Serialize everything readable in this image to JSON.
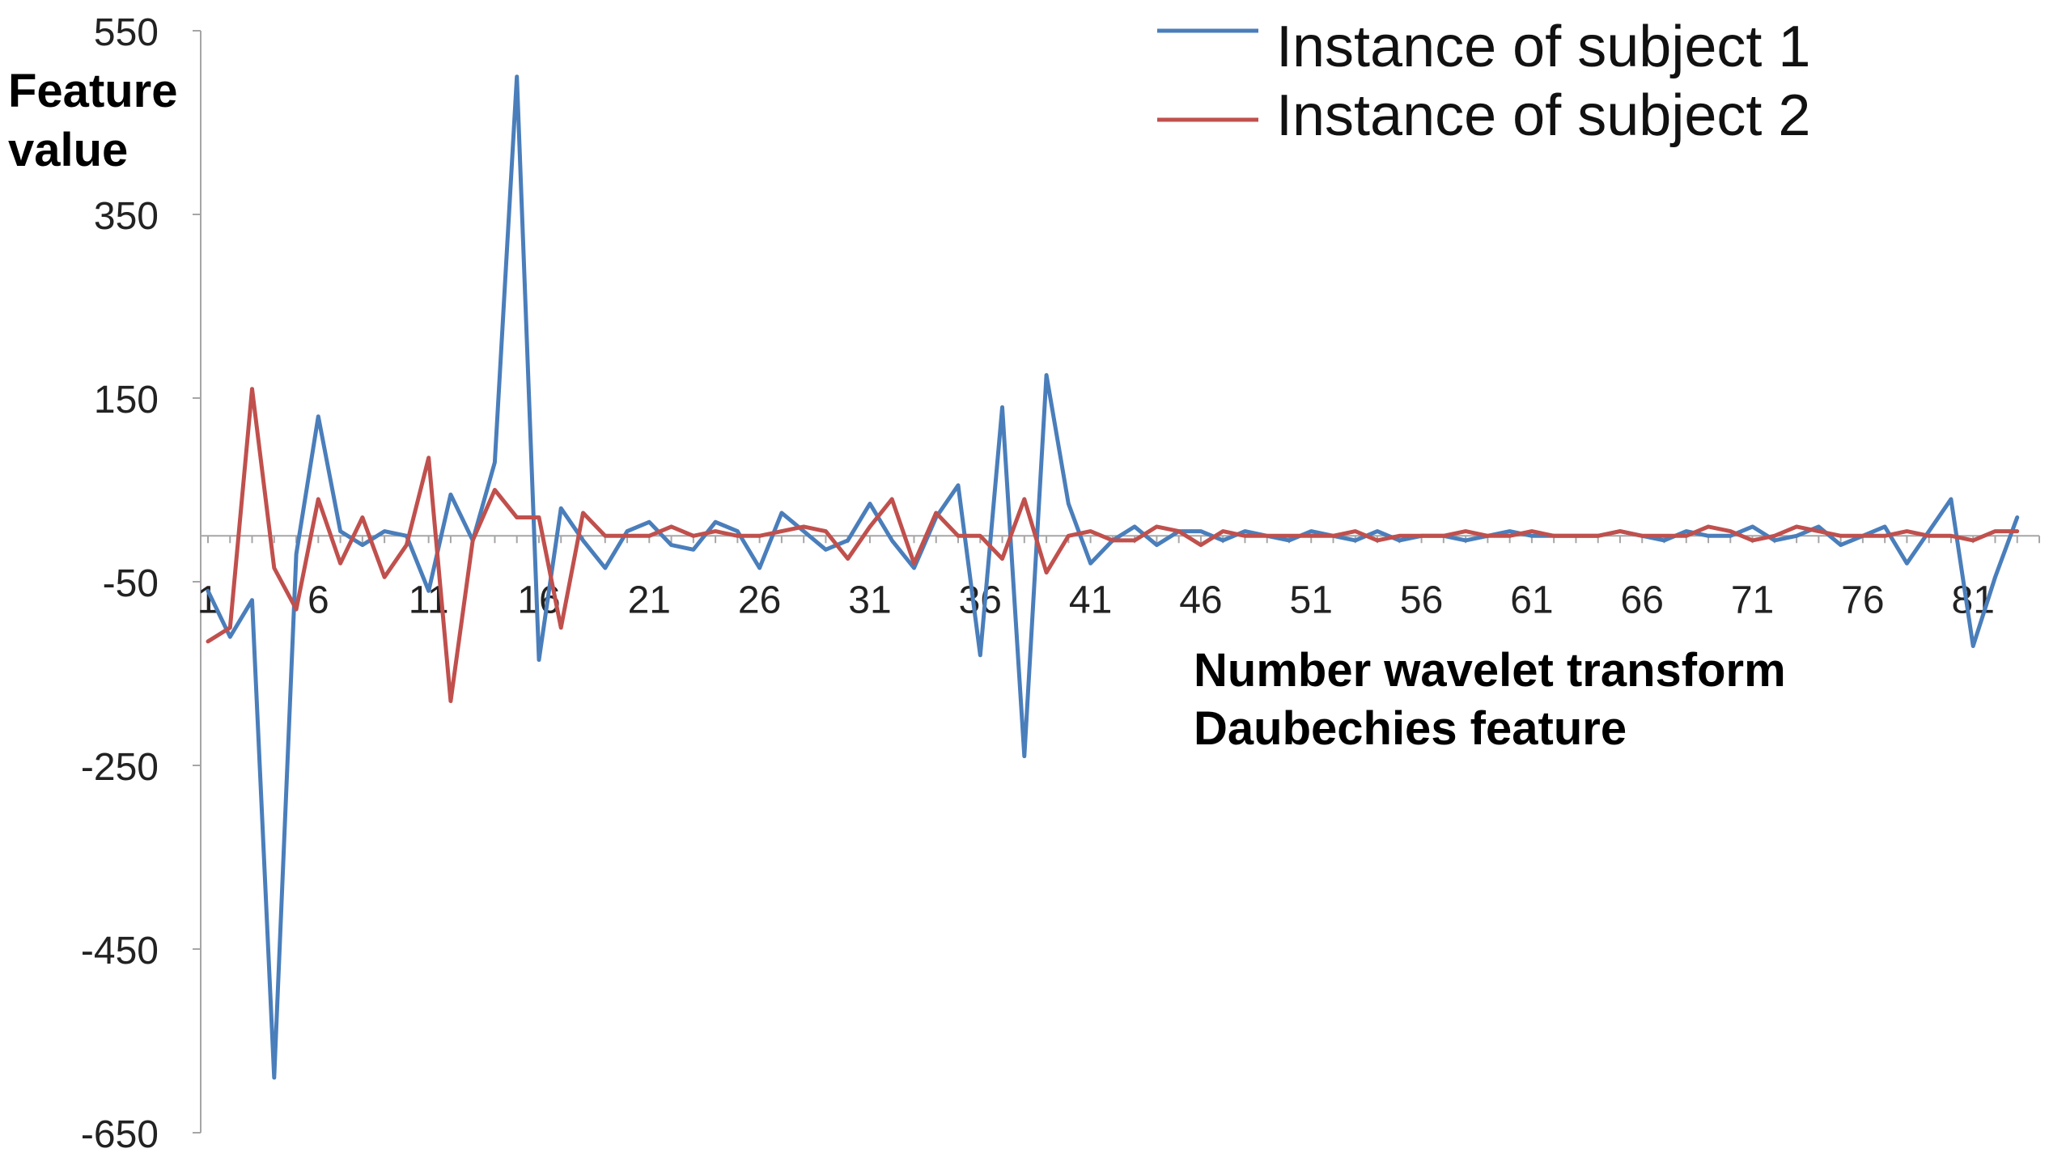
{
  "chart_data": {
    "type": "line",
    "title": "",
    "ylabel_lines": [
      "Feature",
      "value"
    ],
    "xlabel_lines": [
      "Number wavelet transform",
      "Daubechies feature"
    ],
    "ylim": [
      -650,
      550
    ],
    "yticks": [
      550,
      350,
      150,
      -50,
      -250,
      -450,
      -650
    ],
    "xlim": [
      1,
      84
    ],
    "xtick_labels": [
      "1",
      "6",
      "11",
      "16",
      "21",
      "26",
      "31",
      "36",
      "41",
      "46",
      "51",
      "56",
      "61",
      "66",
      "71",
      "76",
      "81"
    ],
    "legend_position": "top-right",
    "grid": false,
    "series": [
      {
        "name": "Instance of subject 1",
        "color": "#4a7ebb",
        "values": [
          -60,
          -110,
          -70,
          -590,
          -20,
          130,
          5,
          -10,
          5,
          0,
          -60,
          45,
          -5,
          80,
          500,
          -135,
          30,
          -5,
          -35,
          5,
          15,
          -10,
          -15,
          15,
          5,
          -35,
          25,
          5,
          -15,
          -5,
          35,
          -5,
          -35,
          20,
          55,
          -130,
          140,
          -240,
          175,
          35,
          -30,
          -5,
          10,
          -10,
          5,
          5,
          -5,
          5,
          0,
          -5,
          5,
          0,
          -5,
          5,
          -5,
          0,
          0,
          -5,
          0,
          5,
          0,
          0,
          0,
          0,
          5,
          0,
          -5,
          5,
          0,
          0,
          10,
          -5,
          0,
          10,
          -10,
          0,
          10,
          -30,
          5,
          40,
          -120,
          -45,
          20
        ]
      },
      {
        "name": "Instance of subject 2",
        "color": "#c0504d",
        "values": [
          -115,
          -100,
          160,
          -35,
          -80,
          40,
          -30,
          20,
          -45,
          -10,
          85,
          -180,
          -5,
          50,
          20,
          20,
          -100,
          25,
          0,
          0,
          0,
          10,
          0,
          5,
          0,
          0,
          5,
          10,
          5,
          -25,
          10,
          40,
          -30,
          25,
          0,
          0,
          -25,
          40,
          -40,
          0,
          5,
          -5,
          -5,
          10,
          5,
          -10,
          5,
          0,
          0,
          0,
          0,
          0,
          5,
          -5,
          0,
          0,
          0,
          5,
          0,
          0,
          5,
          0,
          0,
          0,
          5,
          0,
          0,
          0,
          10,
          5,
          -5,
          0,
          10,
          5,
          0,
          0,
          0,
          5,
          0,
          0,
          -5,
          5,
          5
        ]
      }
    ]
  }
}
